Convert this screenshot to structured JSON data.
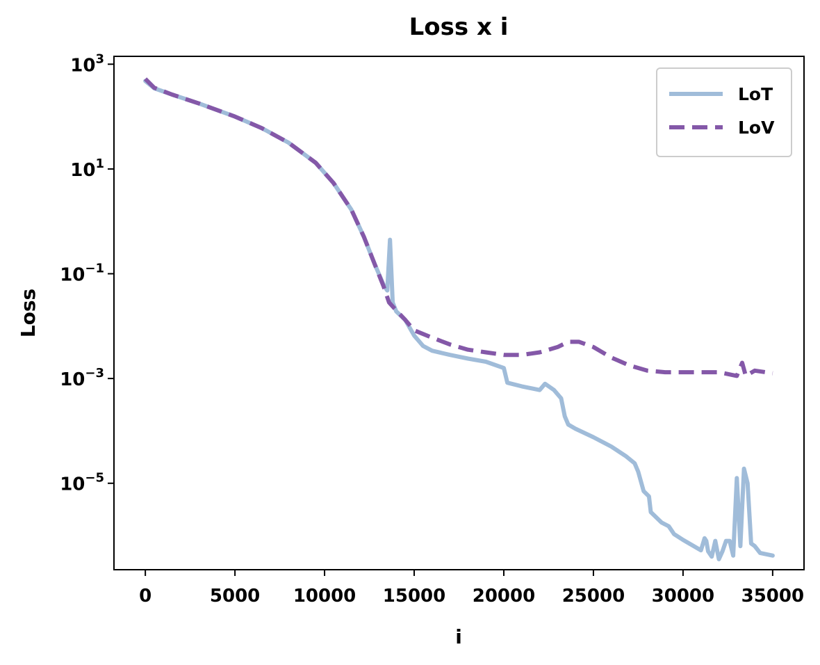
{
  "chart_data": {
    "type": "line",
    "title": "Loss x i",
    "xlabel": "i",
    "ylabel": "Loss",
    "xlim": [
      -1750,
      36750
    ],
    "ylim_log10": [
      -6.65,
      3.15
    ],
    "yscale": "log",
    "x_ticks": [
      0,
      5000,
      10000,
      15000,
      20000,
      25000,
      30000,
      35000
    ],
    "y_ticks": [
      {
        "exp": 3,
        "base": "10",
        "sup": "3"
      },
      {
        "exp": 1,
        "base": "10",
        "sup": "1"
      },
      {
        "exp": -1,
        "base": "10",
        "sup": "−1"
      },
      {
        "exp": -3,
        "base": "10",
        "sup": "−3"
      },
      {
        "exp": -5,
        "base": "10",
        "sup": "−5"
      }
    ],
    "grid": false,
    "legend_position": "top-right",
    "series": [
      {
        "name": "LoT",
        "color": "#a0bcd9",
        "dash": "solid",
        "points": [
          [
            0,
            2.68
          ],
          [
            500,
            2.54
          ],
          [
            1500,
            2.42
          ],
          [
            3000,
            2.25
          ],
          [
            5000,
            2.0
          ],
          [
            6500,
            1.78
          ],
          [
            8000,
            1.5
          ],
          [
            9500,
            1.12
          ],
          [
            10500,
            0.73
          ],
          [
            11500,
            0.22
          ],
          [
            12200,
            -0.3
          ],
          [
            12800,
            -0.82
          ],
          [
            13300,
            -1.22
          ],
          [
            13500,
            -1.32
          ],
          [
            13650,
            -0.35
          ],
          [
            13800,
            -1.55
          ],
          [
            14000,
            -1.72
          ],
          [
            14500,
            -1.88
          ],
          [
            15000,
            -2.18
          ],
          [
            15500,
            -2.38
          ],
          [
            16000,
            -2.47
          ],
          [
            17000,
            -2.55
          ],
          [
            18000,
            -2.62
          ],
          [
            19000,
            -2.68
          ],
          [
            20000,
            -2.8
          ],
          [
            20200,
            -3.08
          ],
          [
            21000,
            -3.15
          ],
          [
            22000,
            -3.22
          ],
          [
            22300,
            -3.1
          ],
          [
            22800,
            -3.22
          ],
          [
            23200,
            -3.38
          ],
          [
            23400,
            -3.72
          ],
          [
            23600,
            -3.88
          ],
          [
            24000,
            -3.96
          ],
          [
            25000,
            -4.12
          ],
          [
            26000,
            -4.3
          ],
          [
            26800,
            -4.48
          ],
          [
            27300,
            -4.62
          ],
          [
            27500,
            -4.78
          ],
          [
            27800,
            -5.15
          ],
          [
            28100,
            -5.25
          ],
          [
            28200,
            -5.55
          ],
          [
            28800,
            -5.75
          ],
          [
            29200,
            -5.82
          ],
          [
            29500,
            -5.97
          ],
          [
            30000,
            -6.08
          ],
          [
            30500,
            -6.18
          ],
          [
            31000,
            -6.28
          ],
          [
            31200,
            -6.05
          ],
          [
            31300,
            -6.1
          ],
          [
            31400,
            -6.3
          ],
          [
            31600,
            -6.4
          ],
          [
            31800,
            -6.1
          ],
          [
            32000,
            -6.45
          ],
          [
            32200,
            -6.3
          ],
          [
            32400,
            -6.1
          ],
          [
            32600,
            -6.1
          ],
          [
            32800,
            -6.38
          ],
          [
            33000,
            -4.9
          ],
          [
            33200,
            -6.2
          ],
          [
            33400,
            -4.72
          ],
          [
            33600,
            -5.0
          ],
          [
            33800,
            -6.15
          ],
          [
            34000,
            -6.2
          ],
          [
            34300,
            -6.33
          ],
          [
            35000,
            -6.38
          ]
        ]
      },
      {
        "name": "LoV",
        "color": "#8458a8",
        "dash": "dashed",
        "points": [
          [
            0,
            2.72
          ],
          [
            500,
            2.55
          ],
          [
            1500,
            2.42
          ],
          [
            3000,
            2.25
          ],
          [
            5000,
            2.0
          ],
          [
            6500,
            1.78
          ],
          [
            8000,
            1.5
          ],
          [
            9500,
            1.12
          ],
          [
            10500,
            0.73
          ],
          [
            11500,
            0.22
          ],
          [
            12200,
            -0.3
          ],
          [
            12800,
            -0.82
          ],
          [
            13300,
            -1.25
          ],
          [
            13600,
            -1.55
          ],
          [
            14000,
            -1.7
          ],
          [
            14500,
            -1.88
          ],
          [
            15000,
            -2.08
          ],
          [
            16000,
            -2.22
          ],
          [
            17000,
            -2.35
          ],
          [
            18000,
            -2.45
          ],
          [
            19000,
            -2.5
          ],
          [
            20000,
            -2.55
          ],
          [
            21000,
            -2.55
          ],
          [
            22000,
            -2.5
          ],
          [
            23000,
            -2.4
          ],
          [
            23600,
            -2.3
          ],
          [
            24200,
            -2.3
          ],
          [
            25000,
            -2.4
          ],
          [
            26000,
            -2.6
          ],
          [
            27000,
            -2.75
          ],
          [
            28000,
            -2.85
          ],
          [
            29000,
            -2.88
          ],
          [
            30000,
            -2.88
          ],
          [
            31000,
            -2.88
          ],
          [
            32000,
            -2.88
          ],
          [
            33000,
            -2.95
          ],
          [
            33300,
            -2.7
          ],
          [
            33500,
            -2.95
          ],
          [
            34000,
            -2.85
          ],
          [
            35000,
            -2.9
          ]
        ]
      }
    ]
  }
}
